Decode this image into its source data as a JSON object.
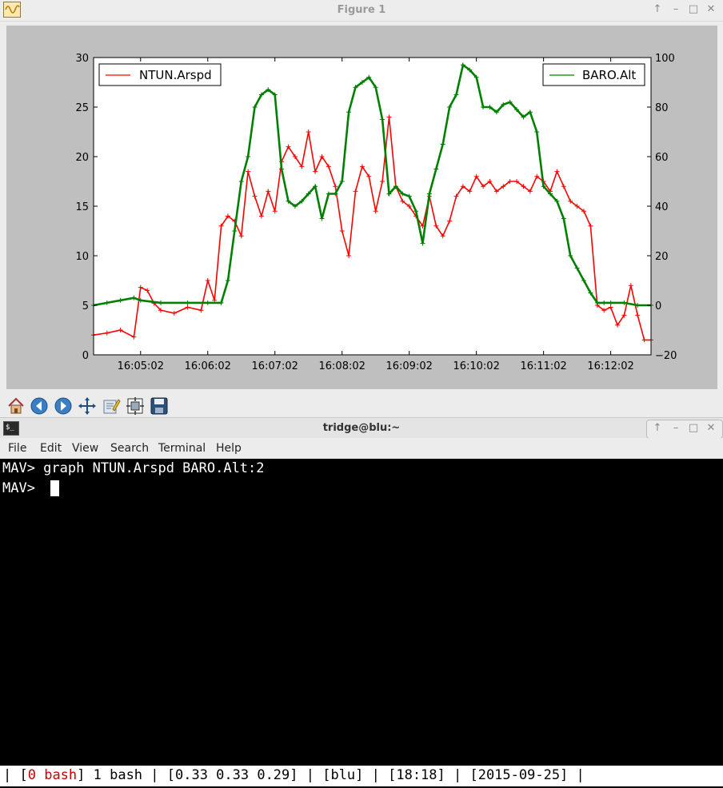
{
  "figure_window": {
    "title": "Figure 1",
    "controls": [
      "↑",
      "–",
      "□",
      "✕"
    ],
    "toolbar": [
      "home-icon",
      "back-icon",
      "forward-icon",
      "pan-icon",
      "edit-axes-icon",
      "configure-subplots-icon",
      "save-icon"
    ]
  },
  "chart_data": {
    "type": "line",
    "x_ticks": [
      "16:05:02",
      "16:06:02",
      "16:07:02",
      "16:08:02",
      "16:09:02",
      "16:10:02",
      "16:11:02",
      "16:12:02"
    ],
    "xlim": [
      "16:04:20",
      "16:12:38"
    ],
    "left_axis": {
      "ylim": [
        0,
        30
      ],
      "ticks": [
        "0",
        "5",
        "10",
        "15",
        "20",
        "25",
        "30"
      ]
    },
    "right_axis": {
      "ylim": [
        -20,
        100
      ],
      "ticks": [
        "-20",
        "0",
        "20",
        "40",
        "60",
        "80",
        "100"
      ]
    },
    "grid": false,
    "series": [
      {
        "name": "NTUN.Arspd",
        "axis": "left",
        "color": "#ff0000",
        "legend": "top-left",
        "x": [
          "16:04:20",
          "16:04:32",
          "16:04:44",
          "16:04:56",
          "16:05:02",
          "16:05:08",
          "16:05:14",
          "16:05:20",
          "16:05:32",
          "16:05:44",
          "16:05:56",
          "16:06:02",
          "16:06:08",
          "16:06:14",
          "16:06:20",
          "16:06:26",
          "16:06:32",
          "16:06:38",
          "16:06:44",
          "16:06:50",
          "16:06:56",
          "16:07:02",
          "16:07:08",
          "16:07:14",
          "16:07:20",
          "16:07:26",
          "16:07:32",
          "16:07:38",
          "16:07:44",
          "16:07:50",
          "16:07:56",
          "16:08:02",
          "16:08:08",
          "16:08:14",
          "16:08:20",
          "16:08:26",
          "16:08:32",
          "16:08:38",
          "16:08:44",
          "16:08:50",
          "16:08:56",
          "16:09:02",
          "16:09:08",
          "16:09:14",
          "16:09:20",
          "16:09:26",
          "16:09:32",
          "16:09:38",
          "16:09:44",
          "16:09:50",
          "16:09:56",
          "16:10:02",
          "16:10:08",
          "16:10:14",
          "16:10:20",
          "16:10:26",
          "16:10:32",
          "16:10:38",
          "16:10:44",
          "16:10:50",
          "16:10:56",
          "16:11:02",
          "16:11:08",
          "16:11:14",
          "16:11:20",
          "16:11:26",
          "16:11:32",
          "16:11:38",
          "16:11:44",
          "16:11:50",
          "16:11:56",
          "16:12:02",
          "16:12:08",
          "16:12:14",
          "16:12:20",
          "16:12:26",
          "16:12:32",
          "16:12:38"
        ],
        "values": [
          2,
          2.2,
          2.5,
          1.8,
          6.8,
          6.5,
          5.2,
          4.5,
          4.2,
          4.8,
          4.5,
          7.5,
          5.5,
          13,
          14,
          13.5,
          12,
          18.5,
          16,
          14,
          16.5,
          14.5,
          19.5,
          21,
          20,
          19,
          22.5,
          18.5,
          20,
          19,
          17,
          12.5,
          10,
          16.5,
          19,
          18,
          14.5,
          17.5,
          24,
          17,
          15.5,
          15,
          14,
          13,
          16,
          13,
          12,
          13.5,
          16,
          17,
          16.5,
          18,
          17,
          17.5,
          16.5,
          17,
          17.5,
          17.5,
          17,
          16.5,
          18,
          17.5,
          16.5,
          18.5,
          17,
          15.5,
          15,
          14.5,
          13,
          5,
          4.5,
          4.8,
          3,
          4,
          7,
          4,
          1.5,
          1.5
        ]
      },
      {
        "name": "BARO.Alt",
        "axis": "right",
        "color": "#008000",
        "legend": "top-right",
        "x": [
          "16:04:20",
          "16:04:32",
          "16:04:44",
          "16:04:56",
          "16:05:02",
          "16:05:20",
          "16:05:44",
          "16:06:02",
          "16:06:14",
          "16:06:20",
          "16:06:26",
          "16:06:32",
          "16:06:38",
          "16:06:44",
          "16:06:50",
          "16:06:56",
          "16:07:02",
          "16:07:08",
          "16:07:14",
          "16:07:20",
          "16:07:26",
          "16:07:32",
          "16:07:38",
          "16:07:44",
          "16:07:50",
          "16:07:56",
          "16:08:02",
          "16:08:08",
          "16:08:14",
          "16:08:20",
          "16:08:26",
          "16:08:32",
          "16:08:38",
          "16:08:44",
          "16:08:50",
          "16:08:56",
          "16:09:02",
          "16:09:08",
          "16:09:14",
          "16:09:20",
          "16:09:26",
          "16:09:32",
          "16:09:38",
          "16:09:44",
          "16:09:50",
          "16:09:56",
          "16:10:02",
          "16:10:08",
          "16:10:14",
          "16:10:20",
          "16:10:26",
          "16:10:32",
          "16:10:38",
          "16:10:44",
          "16:10:50",
          "16:10:56",
          "16:11:02",
          "16:11:08",
          "16:11:14",
          "16:11:20",
          "16:11:26",
          "16:11:32",
          "16:11:38",
          "16:11:44",
          "16:11:50",
          "16:11:56",
          "16:12:02",
          "16:12:14",
          "16:12:26",
          "16:12:38"
        ],
        "values": [
          0,
          1,
          2,
          3,
          2,
          1,
          1,
          1,
          1,
          10,
          30,
          50,
          60,
          80,
          85,
          87,
          85,
          55,
          42,
          40,
          42,
          45,
          48,
          35,
          45,
          45,
          50,
          78,
          88,
          90,
          92,
          88,
          75,
          45,
          48,
          45,
          44,
          38,
          25,
          45,
          55,
          65,
          80,
          85,
          97,
          95,
          92,
          80,
          80,
          78,
          81,
          82,
          79,
          76,
          78,
          70,
          48,
          45,
          42,
          35,
          20,
          15,
          10,
          5,
          1,
          1,
          1,
          1,
          0,
          0
        ]
      }
    ]
  },
  "terminal_window": {
    "title": "tridge@blu:~",
    "controls": [
      "↑",
      "–",
      "□",
      "✕"
    ],
    "menu": [
      "File",
      "Edit",
      "View",
      "Search",
      "Terminal",
      "Help"
    ],
    "lines": [
      "MAV> graph NTUN.Arspd BARO.Alt:2",
      "MAV> "
    ],
    "status": {
      "sep_left": "| ",
      "bracket_open": "[",
      "active_window": "0 bash",
      "rest_window": "] 1 bash",
      "load": " | [0.33 0.33 0.29]",
      "host": " | [blu]",
      "time": " | [18:18]",
      "date": " | [2015-09-25]",
      "sep_right": " |"
    }
  }
}
